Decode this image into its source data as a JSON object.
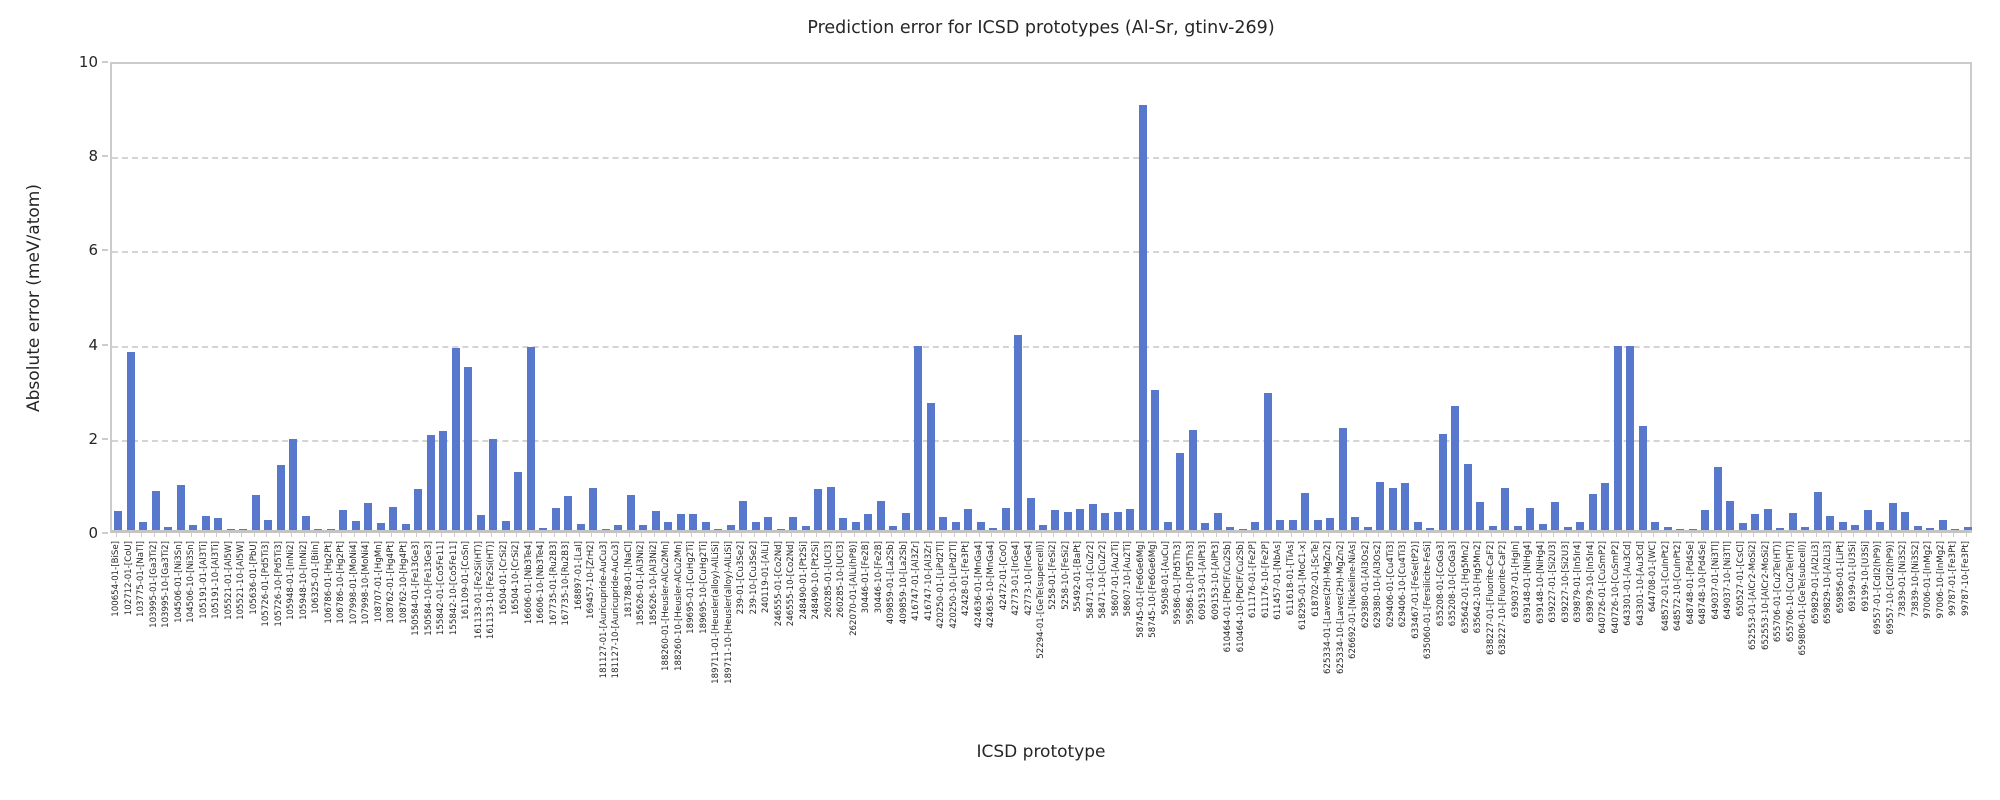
{
  "chart_data": {
    "type": "bar",
    "title": "Prediction error for ICSD prototypes (Al-Sr, gtinv-269)",
    "xlabel": "ICSD prototype",
    "ylabel": "Absolute error (meV/atom)",
    "ylim": [
      0,
      10
    ],
    "yticks": [
      0,
      2,
      4,
      6,
      8,
      10
    ],
    "grid": "horizontal-dashed",
    "legend": "none",
    "bar_color": "#5878CD",
    "categories": [
      "100654-01-[BiSe]",
      "102712-01-[CoU]",
      "103775-01-[NaTl]",
      "103995-01-[Ga3Ti2]",
      "103995-10-[Ga3Ti2]",
      "104506-01-[Ni3Sn]",
      "104506-10-[Ni3Sn]",
      "105191-01-[Al3Ti]",
      "105191-10-[Al3Ti]",
      "105521-01-[Al5W]",
      "105521-10-[Al5W]",
      "105636-01-[PbU]",
      "105726-01-[Pd5Ti3]",
      "105726-10-[Pd5Ti3]",
      "105948-01-[InNi2]",
      "105948-10-[InNi2]",
      "106325-01-[BiIn]",
      "106786-01-[Hg2Pt]",
      "106786-10-[Hg2Pt]",
      "107998-01-[MoNi4]",
      "107998-10-[MoNi4]",
      "108707-01-[HgMn]",
      "108762-01-[Hg4Pt]",
      "108762-10-[Hg4Pt]",
      "150584-01-[Fe13Ge3]",
      "150584-10-[Fe13Ge3]",
      "155842-01-[Co5Fe11]",
      "155842-10-[Co5Fe11]",
      "161109-01-[CoSn]",
      "161133-01-[Fe2Si(HT)]",
      "161133-10-[Fe2Si(HT)]",
      "16504-01-[CrSi2]",
      "16504-10-[CrSi2]",
      "16606-01-[Nb3Te4]",
      "16606-10-[Nb3Te4]",
      "167735-01-[Ru2B3]",
      "167735-10-[Ru2B3]",
      "168897-01-[LaI]",
      "169457-10-[ZrH2]",
      "181127-01-[Auricupride-AuCu3]",
      "181127-10-[Auricupride-AuCu3]",
      "181788-01-[NaCl]",
      "185626-01-[Al3Ni2]",
      "185626-10-[Al3Ni2]",
      "188260-01-[Heusler-AlCu2Mn]",
      "188260-10-[Heusler-AlCu2Mn]",
      "189695-01-[CuHg2Ti]",
      "189695-10-[CuHg2Ti]",
      "189711-01-[Heusler(alloy)-AlLiSi]",
      "189711-10-[Heusler(alloy)-AlLiSi]",
      "239-01-[Cu3Se2]",
      "239-10-[Cu3Se2]",
      "240119-01-[AlLi]",
      "246555-01-[Co2Nd]",
      "246555-10-[Co2Nd]",
      "248490-01-[Pt2Si]",
      "248490-10-[Pt2Si]",
      "260285-01-[UCl3]",
      "260285-10-[UCl3]",
      "262070-01-[AlLi(hP8)]",
      "30446-01-[Fe2B]",
      "30446-10-[Fe2B]",
      "409859-01-[La2Sb]",
      "409859-10-[La2Sb]",
      "416747-01-[Al3Zr]",
      "416747-10-[Al3Zr]",
      "420250-01-[LiPd2Tl]",
      "420250-10-[LiPd2Tl]",
      "42428-01-[Fe3Pt]",
      "424636-01-[MnGa4]",
      "424636-10-[MnGa4]",
      "42472-01-[CoO]",
      "42773-01-[IrGe4]",
      "42773-10-[IrGe4]",
      "52294-01-[GeTe(supercell)]",
      "5258-01-[FeSi2]",
      "5258-10-[FeSi2]",
      "55492-01-[BaPt]",
      "58471-01-[CuZr2]",
      "58471-10-[CuZr2]",
      "58607-01-[Au2Ti]",
      "58607-10-[Au2Ti]",
      "58745-01-[Fe6Ge6Mg]",
      "58745-10-[Fe6Ge6Mg]",
      "59508-01-[AuCu]",
      "59586-01-[Pd5Th3]",
      "59586-10-[Pd5Th3]",
      "609153-01-[AlPt3]",
      "609153-10-[AlPt3]",
      "610464-01-[PbClF/Cu2Sb]",
      "610464-10-[PbClF/Cu2Sb]",
      "611176-01-[Fe2P]",
      "611176-10-[Fe2P]",
      "611457-01-[NbAs]",
      "611618-01-[TiAs]",
      "618295-01-[MoC1-x]",
      "618702-01-[ScTe]",
      "625334-01-[Laves(2H)-MgZn2]",
      "625334-10-[Laves(2H)-MgZn2]",
      "626692-01-[Nickeline-NiAs]",
      "629380-01-[Al3Os2]",
      "629380-10-[Al3Os2]",
      "629406-01-[Cu4Ti3]",
      "629406-10-[Cu4Ti3]",
      "633467-01-[FeSe(tP2)]",
      "635060-01-[Fersilicite-FeSi]",
      "635208-01-[CoGa3]",
      "635208-10-[CoGa3]",
      "635642-01-[Hg5Mn2]",
      "635642-10-[Hg5Mn2]",
      "638227-01-[Fluorite-CaF2]",
      "638227-10-[Fluorite-CaF2]",
      "639037-01-[HgIn]",
      "639148-01-[NiHg4]",
      "639148-10-[NiHg4]",
      "639227-01-[Si2U3]",
      "639227-10-[Si2U3]",
      "639879-01-[In5Ir4]",
      "639879-10-[In5Ir4]",
      "640726-01-[CuSmP2]",
      "640726-10-[CuSmP2]",
      "643301-01-[Au3Cd]",
      "643301-10-[Au3Cd]",
      "644708-01-[WC]",
      "648572-01-[CuInPt2]",
      "648572-10-[CuInPt2]",
      "648748-01-[Pd4Se]",
      "648748-10-[Pd4Se]",
      "649037-01-[Ni3Tl]",
      "649037-10-[Ni3Tl]",
      "650527-01-[CsCl]",
      "652553-01-[AlCr2-MoSi2]",
      "652553-10-[AlCr2-MoSi2]",
      "655706-01-[Cu2Te(HT)]",
      "655706-10-[Cu2Te(HT)]",
      "659806-01-[GeTe(subcell)]",
      "659829-01-[Al2Li3]",
      "659829-10-[Al2Li3]",
      "659856-01-[LiPt]",
      "69199-01-[U3Si]",
      "69199-10-[U3Si]",
      "69557-01-[CdI2(hP9)]",
      "69557-10-[CdI2(hP9)]",
      "73839-01-[Ni3S2]",
      "73839-10-[Ni3S2]",
      "97006-01-[InMg2]",
      "97006-10-[InMg2]",
      "99787-01-[Fe3Pt]",
      "99787-10-[Fe3Pt]"
    ],
    "values": [
      0.4,
      3.78,
      0.17,
      0.83,
      0.06,
      0.95,
      0.1,
      0.3,
      0.26,
      0.02,
      0.03,
      0.74,
      0.21,
      1.37,
      1.94,
      0.3,
      0.02,
      0.02,
      0.42,
      0.2,
      0.58,
      0.15,
      0.48,
      0.13,
      0.86,
      2.02,
      2.1,
      3.87,
      3.46,
      0.32,
      1.94,
      0.2,
      1.23,
      3.89,
      0.04,
      0.47,
      0.72,
      0.13,
      0.89,
      0.02,
      0.1,
      0.75,
      0.1,
      0.41,
      0.16,
      0.34,
      0.34,
      0.18,
      0.02,
      0.11,
      0.62,
      0.18,
      0.27,
      0.03,
      0.27,
      0.08,
      0.86,
      0.91,
      0.25,
      0.16,
      0.35,
      0.62,
      0.08,
      0.37,
      3.9,
      2.69,
      0.28,
      0.18,
      0.44,
      0.18,
      0.05,
      0.46,
      4.13,
      0.67,
      0.1,
      0.42,
      0.39,
      0.44,
      0.55,
      0.37,
      0.39,
      0.44,
      9.03,
      2.97,
      0.16,
      1.63,
      2.13,
      0.14,
      0.37,
      0.06,
      0.02,
      0.18,
      2.91,
      0.21,
      0.21,
      0.78,
      0.21,
      0.25,
      2.16,
      0.28,
      0.07,
      1.01,
      0.9,
      0.99,
      0.17,
      0.05,
      2.03,
      2.64,
      1.4,
      0.6,
      0.08,
      0.9,
      0.08,
      0.47,
      0.12,
      0.59,
      0.06,
      0.18,
      0.76,
      0.99,
      3.91,
      3.91,
      2.2,
      0.16,
      0.07,
      0.02,
      0.02,
      0.42,
      1.34,
      0.62,
      0.14,
      0.35,
      0.44,
      0.04,
      0.37,
      0.07,
      0.81,
      0.3,
      0.16,
      0.11,
      0.42,
      0.18,
      0.58,
      0.39,
      0.08,
      0.04,
      0.21,
      0.02,
      0.07
    ]
  }
}
